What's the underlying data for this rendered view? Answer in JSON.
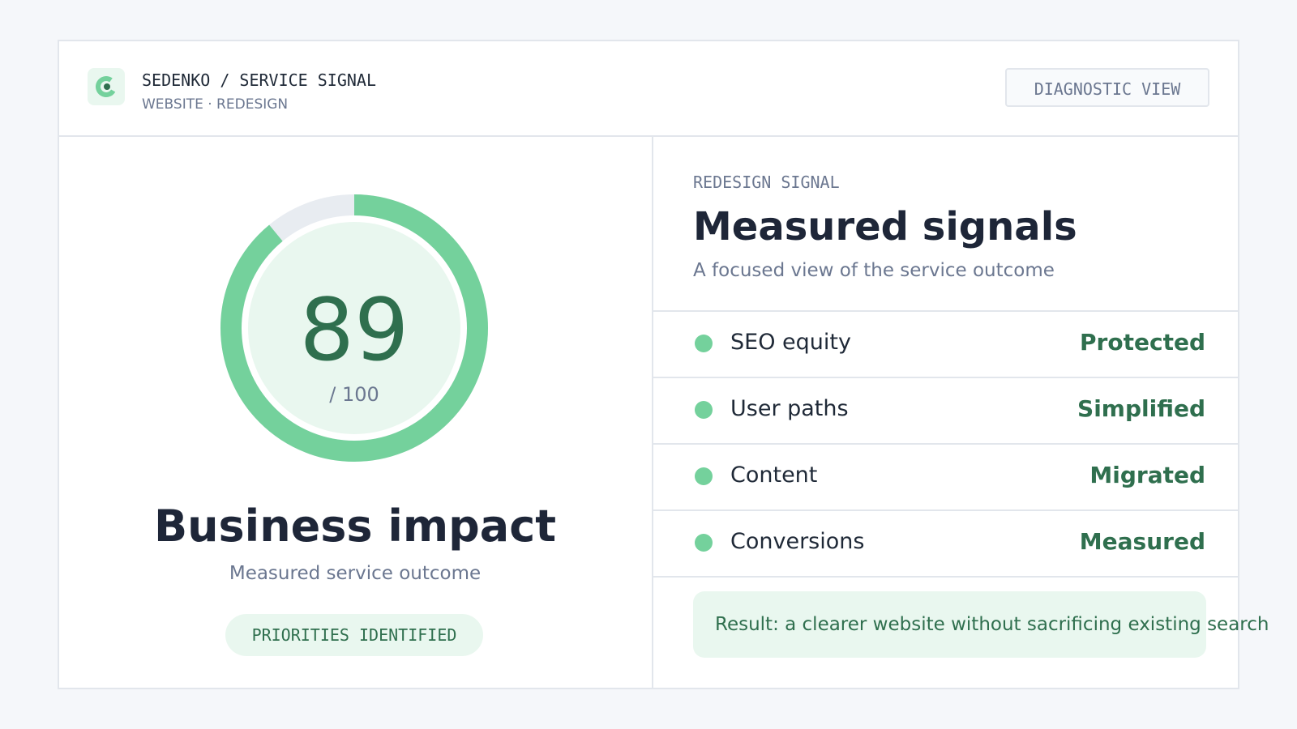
{
  "header": {
    "brand": "SEDENKO / SERVICE SIGNAL",
    "subtitle": "WEBSITE · REDESIGN",
    "button": "DIAGNOSTIC VIEW"
  },
  "score": {
    "value": 89,
    "max": 100,
    "max_label": "/ 100",
    "title": "Business impact",
    "subtitle": "Measured service outcome",
    "badge": "PRIORITIES IDENTIFIED"
  },
  "signals": {
    "eyebrow": "REDESIGN SIGNAL",
    "title": "Measured signals",
    "subtitle": "A focused view of the service outcome",
    "rows": [
      {
        "label": "SEO equity",
        "status": "Protected"
      },
      {
        "label": "User paths",
        "status": "Simplified"
      },
      {
        "label": "Content",
        "status": "Migrated"
      },
      {
        "label": "Conversions",
        "status": "Measured"
      }
    ],
    "result": "Result: a clearer website without sacrificing existing search"
  }
}
